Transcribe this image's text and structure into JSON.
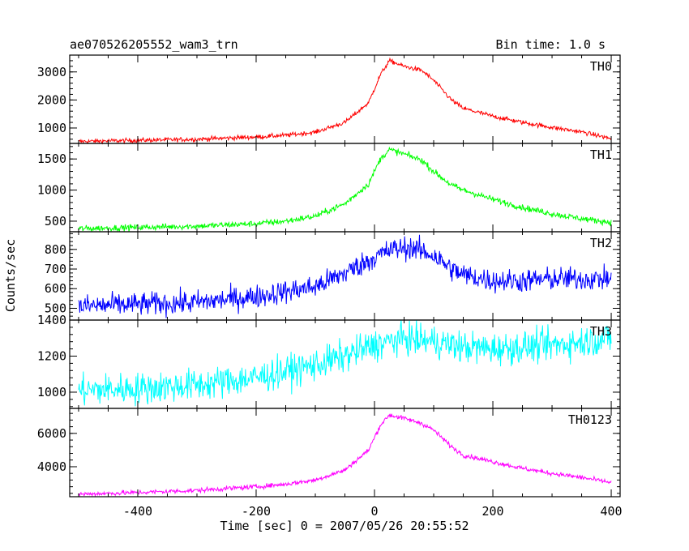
{
  "header": {
    "title": "ae070526205552_wam3_trn",
    "bin_time": "Bin time: 1.0 s"
  },
  "chart_data": {
    "type": "line",
    "title": "ae070526205552_wam3_trn",
    "subtitle": "Bin time: 1.0 s",
    "xlabel": "Time [sec] 0 = 2007/05/26 20:55:52",
    "ylabel": "Counts/sec",
    "xlim": [
      -515,
      415
    ],
    "xticks": [
      -400,
      -200,
      0,
      200,
      400
    ],
    "x_range": [
      -500,
      400
    ],
    "grid": false,
    "panels": [
      {
        "name": "TH0",
        "color": "#ff0000",
        "ylim": [
          450,
          3600
        ],
        "yticks": [
          1000,
          2000,
          3000
        ],
        "points": [
          [
            -500,
            520
          ],
          [
            -400,
            560
          ],
          [
            -300,
            600
          ],
          [
            -200,
            680
          ],
          [
            -150,
            740
          ],
          [
            -100,
            850
          ],
          [
            -50,
            1200
          ],
          [
            -10,
            1900
          ],
          [
            10,
            2900
          ],
          [
            25,
            3400
          ],
          [
            50,
            3200
          ],
          [
            80,
            3050
          ],
          [
            100,
            2700
          ],
          [
            130,
            2000
          ],
          [
            150,
            1700
          ],
          [
            200,
            1420
          ],
          [
            250,
            1200
          ],
          [
            300,
            1020
          ],
          [
            350,
            860
          ],
          [
            400,
            620
          ]
        ],
        "noise": 40
      },
      {
        "name": "TH1",
        "color": "#00ff00",
        "ylim": [
          330,
          1750
        ],
        "yticks": [
          500,
          1000,
          1500
        ],
        "points": [
          [
            -500,
            380
          ],
          [
            -400,
            400
          ],
          [
            -300,
            420
          ],
          [
            -200,
            460
          ],
          [
            -150,
            500
          ],
          [
            -100,
            580
          ],
          [
            -50,
            780
          ],
          [
            -10,
            1100
          ],
          [
            10,
            1500
          ],
          [
            25,
            1650
          ],
          [
            50,
            1580
          ],
          [
            80,
            1480
          ],
          [
            100,
            1300
          ],
          [
            130,
            1080
          ],
          [
            150,
            1000
          ],
          [
            200,
            850
          ],
          [
            250,
            720
          ],
          [
            300,
            620
          ],
          [
            350,
            540
          ],
          [
            400,
            480
          ]
        ],
        "noise": 25
      },
      {
        "name": "TH2",
        "color": "#0000ff",
        "ylim": [
          440,
          890
        ],
        "yticks": [
          500,
          600,
          700,
          800
        ],
        "points": [
          [
            -500,
            510
          ],
          [
            -400,
            520
          ],
          [
            -300,
            530
          ],
          [
            -200,
            560
          ],
          [
            -100,
            610
          ],
          [
            -50,
            680
          ],
          [
            0,
            760
          ],
          [
            30,
            800
          ],
          [
            60,
            810
          ],
          [
            100,
            770
          ],
          [
            130,
            700
          ],
          [
            150,
            670
          ],
          [
            200,
            640
          ],
          [
            250,
            640
          ],
          [
            300,
            650
          ],
          [
            350,
            650
          ],
          [
            400,
            650
          ]
        ],
        "noise": 30
      },
      {
        "name": "TH3",
        "color": "#00ffff",
        "ylim": [
          910,
          1400
        ],
        "yticks": [
          1000,
          1200,
          1400
        ],
        "points": [
          [
            -500,
            1010
          ],
          [
            -400,
            1020
          ],
          [
            -300,
            1040
          ],
          [
            -200,
            1080
          ],
          [
            -100,
            1150
          ],
          [
            -50,
            1200
          ],
          [
            0,
            1260
          ],
          [
            50,
            1300
          ],
          [
            100,
            1280
          ],
          [
            150,
            1250
          ],
          [
            200,
            1240
          ],
          [
            300,
            1260
          ],
          [
            400,
            1300
          ]
        ],
        "noise": 45
      },
      {
        "name": "TH0123",
        "color": "#ff00ff",
        "ylim": [
          2200,
          7500
        ],
        "yticks": [
          4000,
          6000
        ],
        "points": [
          [
            -500,
            2350
          ],
          [
            -400,
            2450
          ],
          [
            -300,
            2580
          ],
          [
            -200,
            2800
          ],
          [
            -150,
            2950
          ],
          [
            -100,
            3200
          ],
          [
            -50,
            3800
          ],
          [
            -10,
            5000
          ],
          [
            10,
            6500
          ],
          [
            25,
            7100
          ],
          [
            50,
            6900
          ],
          [
            80,
            6600
          ],
          [
            100,
            6200
          ],
          [
            130,
            5200
          ],
          [
            150,
            4700
          ],
          [
            200,
            4300
          ],
          [
            250,
            3900
          ],
          [
            300,
            3600
          ],
          [
            350,
            3350
          ],
          [
            400,
            3050
          ]
        ],
        "noise": 70
      }
    ]
  }
}
